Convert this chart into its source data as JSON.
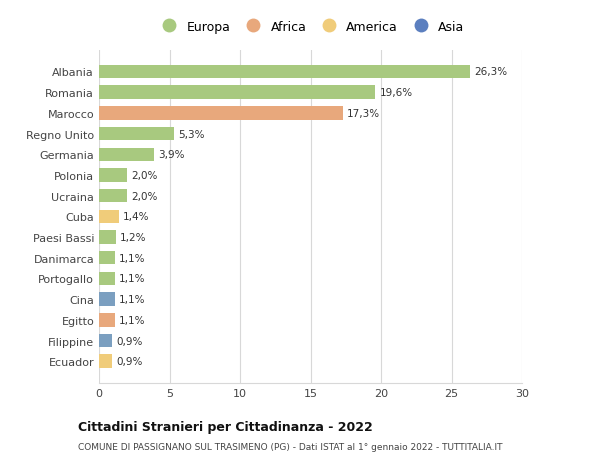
{
  "categories": [
    "Albania",
    "Romania",
    "Marocco",
    "Regno Unito",
    "Germania",
    "Polonia",
    "Ucraina",
    "Cuba",
    "Paesi Bassi",
    "Danimarca",
    "Portogallo",
    "Cina",
    "Egitto",
    "Filippine",
    "Ecuador"
  ],
  "values": [
    26.3,
    19.6,
    17.3,
    5.3,
    3.9,
    2.0,
    2.0,
    1.4,
    1.2,
    1.1,
    1.1,
    1.1,
    1.1,
    0.9,
    0.9
  ],
  "labels": [
    "26,3%",
    "19,6%",
    "17,3%",
    "5,3%",
    "3,9%",
    "2,0%",
    "2,0%",
    "1,4%",
    "1,2%",
    "1,1%",
    "1,1%",
    "1,1%",
    "1,1%",
    "0,9%",
    "0,9%"
  ],
  "colors": [
    "#a8c97f",
    "#a8c97f",
    "#e8a87c",
    "#a8c97f",
    "#a8c97f",
    "#a8c97f",
    "#a8c97f",
    "#f0cc7a",
    "#a8c97f",
    "#a8c97f",
    "#a8c97f",
    "#7b9fc0",
    "#e8a87c",
    "#7b9fc0",
    "#f0cc7a"
  ],
  "legend_labels": [
    "Europa",
    "Africa",
    "America",
    "Asia"
  ],
  "legend_colors": [
    "#a8c97f",
    "#e8a87c",
    "#f0cc7a",
    "#5b7fbf"
  ],
  "title": "Cittadini Stranieri per Cittadinanza - 2022",
  "subtitle": "COMUNE DI PASSIGNANO SUL TRASIMENO (PG) - Dati ISTAT al 1° gennaio 2022 - TUTTITALIA.IT",
  "xlim": [
    0,
    30
  ],
  "xticks": [
    0,
    5,
    10,
    15,
    20,
    25,
    30
  ],
  "bg_color": "#ffffff",
  "grid_color": "#d8d8d8"
}
